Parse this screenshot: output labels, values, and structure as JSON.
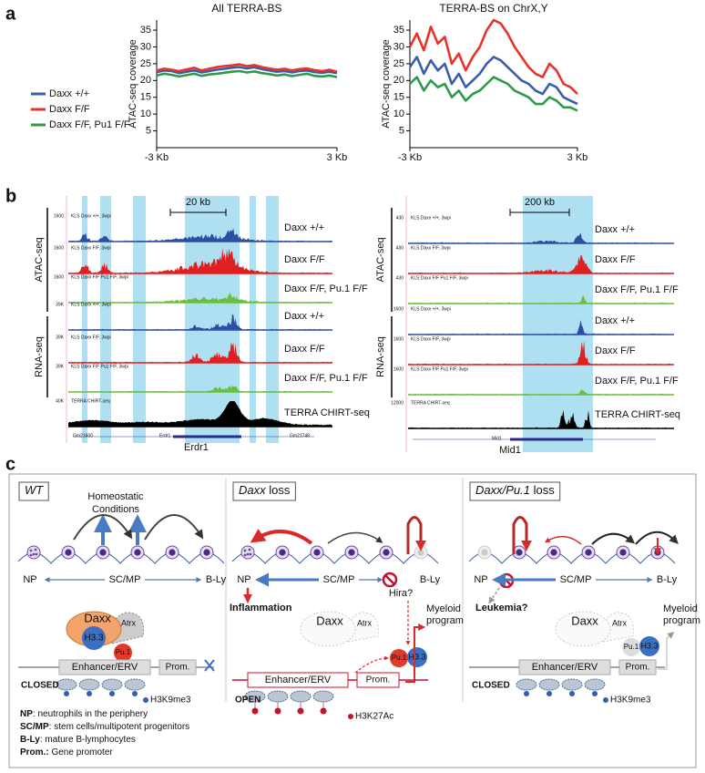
{
  "panel_labels": [
    "a",
    "b",
    "c"
  ],
  "chart_data": [
    {
      "type": "line",
      "title": "All TERRA-BS",
      "y_label": "ATAC-seq coverage",
      "legend": "left",
      "x": [
        -3,
        -2.75,
        -2.5,
        -2.25,
        -2,
        -1.75,
        -1.5,
        -1.25,
        -1,
        -0.75,
        -0.5,
        -0.25,
        0,
        0.25,
        0.5,
        0.75,
        1,
        1.25,
        1.5,
        1.75,
        2,
        2.25,
        2.5,
        2.75,
        3
      ],
      "xlim": [
        -3,
        3
      ],
      "xticks": [
        {
          "value": -3,
          "label": "-3 Kb"
        },
        {
          "value": 3,
          "label": "3 Kb"
        }
      ],
      "ylim": [
        0,
        38
      ],
      "yticks": [
        5,
        10,
        15,
        20,
        25,
        30,
        35
      ],
      "series": [
        {
          "name": "Daxx +/+",
          "color": "#3b5bab",
          "values": [
            22.5,
            23,
            22.8,
            22.2,
            22.6,
            23,
            22.4,
            22.8,
            23.2,
            23.5,
            23.8,
            24,
            23.6,
            23.9,
            23.4,
            23,
            22.6,
            22.8,
            22.4,
            22.8,
            23,
            22.5,
            22.3,
            22.6,
            22.2
          ]
        },
        {
          "name": "Daxx F/F",
          "color": "#e8332a",
          "values": [
            23,
            23.5,
            23.2,
            22.8,
            23.3,
            23.8,
            23,
            23.5,
            24,
            24.3,
            24.5,
            24.8,
            24.3,
            24.6,
            24,
            23.6,
            23.2,
            23.5,
            23,
            23.4,
            23.6,
            23.1,
            22.8,
            23.2,
            22.6
          ]
        },
        {
          "name": "Daxx F/F, Pu1 F/F",
          "color": "#2e9a4a",
          "values": [
            21.5,
            22,
            21.7,
            21.2,
            21.6,
            22,
            21.4,
            21.8,
            22,
            22.3,
            22.6,
            22.8,
            22.4,
            22.7,
            22.2,
            21.9,
            21.5,
            21.8,
            21.3,
            21.7,
            22,
            21.4,
            21.2,
            21.5,
            21
          ]
        }
      ]
    },
    {
      "type": "line",
      "title": "TERRA-BS on ChrX,Y",
      "y_label": "ATAC-seq coverage",
      "x": [
        -3,
        -2.75,
        -2.5,
        -2.25,
        -2,
        -1.75,
        -1.5,
        -1.25,
        -1,
        -0.75,
        -0.5,
        -0.25,
        0,
        0.25,
        0.5,
        0.75,
        1,
        1.25,
        1.5,
        1.75,
        2,
        2.25,
        2.5,
        2.75,
        3
      ],
      "xlim": [
        -3,
        3
      ],
      "xticks": [
        {
          "value": -3,
          "label": "-3 Kb"
        },
        {
          "value": 3,
          "label": "3 Kb"
        }
      ],
      "ylim": [
        0,
        38
      ],
      "yticks": [
        5,
        10,
        15,
        20,
        25,
        30,
        35
      ],
      "series": [
        {
          "color": "#3b5bab",
          "values": [
            24,
            27,
            22,
            26,
            23,
            25,
            19,
            22,
            18,
            20,
            22,
            25,
            27,
            26,
            24,
            22,
            20,
            19,
            17,
            16,
            19,
            18,
            15,
            14,
            13
          ]
        },
        {
          "color": "#e8332a",
          "values": [
            30,
            34,
            29,
            36,
            31,
            33,
            25,
            28,
            23,
            27,
            30,
            35,
            38,
            37,
            34,
            30,
            27,
            24,
            22,
            21,
            25,
            23,
            19,
            18,
            16
          ]
        },
        {
          "color": "#2e9a4a",
          "values": [
            19,
            21,
            17,
            20,
            18,
            19,
            15,
            17,
            14,
            16,
            17,
            19,
            21,
            20,
            19,
            17,
            16,
            15,
            13,
            13,
            15,
            14,
            12,
            12,
            11
          ]
        }
      ]
    }
  ],
  "panel_b": {
    "left": {
      "scale_bar": "20 kb",
      "groups": [
        "ATAC-seq",
        "RNA-seq"
      ],
      "tracks": [
        {
          "scale": "1600",
          "source": "KLS Daxx +/+, 3wpi",
          "label": "Daxx +/+",
          "color": "#2f4ea3"
        },
        {
          "scale": "1600",
          "source": "KLS Daxx F/F, 3wpi",
          "label": "Daxx F/F",
          "color": "#e02020"
        },
        {
          "scale": "1600",
          "source": "KLS Daxx F/F Pu1 F/F, 3wpi",
          "label": "Daxx F/F, Pu.1 F/F",
          "color": "#6abf3f"
        },
        {
          "scale": "39K",
          "source": "KLS Daxx +/+, 3wpi",
          "label": "Daxx +/+",
          "color": "#2f4ea3"
        },
        {
          "scale": "39K",
          "source": "KLS Daxx F/F, 3wpi",
          "label": "Daxx F/F",
          "color": "#e02020"
        },
        {
          "scale": "39K",
          "source": "KLS Daxx F/F Pu1 F/F, 3wpi",
          "label": "Daxx F/F, Pu.1 F/F",
          "color": "#6abf3f"
        },
        {
          "scale": "40K",
          "source": "TERRA CHIRT-seq",
          "label": "TERRA CHIRT-seq",
          "color": "#000000"
        }
      ],
      "genes": [
        "Gm21600",
        "Erdr1",
        "Gm21748"
      ],
      "gene": "Erdr1"
    },
    "right": {
      "scale_bar": "200 kb",
      "groups": [
        "ATAC-seq",
        "RNA-seq"
      ],
      "tracks": [
        {
          "scale": "430",
          "source": "KLS Daxx +/+, 3wpi",
          "label": "Daxx +/+",
          "color": "#2f4ea3"
        },
        {
          "scale": "430",
          "source": "KLS Daxx F/F, 3wpi",
          "label": "Daxx F/F",
          "color": "#e02020"
        },
        {
          "scale": "430",
          "source": "KLS Daxx F/F Pu1 F/F, 3wpi",
          "label": "Daxx F/F, Pu.1 F/F",
          "color": "#6abf3f"
        },
        {
          "scale": "1600",
          "source": "KLS Daxx +/+, 3wpi",
          "label": "Daxx +/+",
          "color": "#2f4ea3"
        },
        {
          "scale": "1600",
          "source": "KLS Daxx F/F, 3wpi",
          "label": "Daxx F/F",
          "color": "#e02020"
        },
        {
          "scale": "1600",
          "source": "KLS Daxx F/F Pu1 F/F, 3wpi",
          "label": "Daxx F/F, Pu.1 F/F",
          "color": "#6abf3f"
        },
        {
          "scale": "12000",
          "source": "TERRA CHIRT-seq",
          "label": "TERRA CHIRT-seq",
          "color": "#000000"
        }
      ],
      "genes": [
        "Mid1"
      ],
      "gene": "Mid1"
    }
  },
  "panel_c": {
    "panels": [
      {
        "header": [
          "WT"
        ],
        "note": [
          "Homeostatic",
          "Conditions"
        ],
        "lineage": [
          "NP",
          "SC/MP",
          "B-Ly"
        ],
        "complex": [
          "Daxx",
          "H3.3",
          "Atrx",
          "Pu.1"
        ],
        "elements": [
          "Enhancer/ERV",
          "Prom."
        ],
        "state": "CLOSED",
        "mark": "H3K9me3"
      },
      {
        "header": [
          "Daxx",
          " loss"
        ],
        "outcome": "Inflammation",
        "cofactor": "Hira?",
        "program": [
          "Myeloid",
          "program"
        ],
        "lineage": [
          "NP",
          "SC/MP",
          "B-Ly"
        ],
        "complex": [
          "Daxx",
          "H3.3",
          "Atrx",
          "Pu.1"
        ],
        "elements": [
          "Enhancer/ERV",
          "Prom."
        ],
        "state": "OPEN",
        "mark": "H3K27Ac"
      },
      {
        "header": [
          "Daxx/Pu.1",
          " loss"
        ],
        "outcome": "Leukemia?",
        "program": [
          "Myeloid",
          "program"
        ],
        "lineage": [
          "NP",
          "SC/MP",
          "B-Ly"
        ],
        "complex": [
          "Daxx",
          "H3.3",
          "Atrx",
          "Pu.1"
        ],
        "elements": [
          "Enhancer/ERV",
          "Prom."
        ],
        "state": "CLOSED",
        "mark": "H3K9me3"
      }
    ],
    "legend": [
      {
        "term": "NP",
        "text": ": neutrophils in the periphery"
      },
      {
        "term": "SC/MP",
        "text": ": stem cells/multipotent progenitors"
      },
      {
        "term": "B-Ly",
        "text": ": mature B-lymphocytes"
      },
      {
        "term": "Prom.:",
        "text": " Gene promoter"
      }
    ]
  }
}
